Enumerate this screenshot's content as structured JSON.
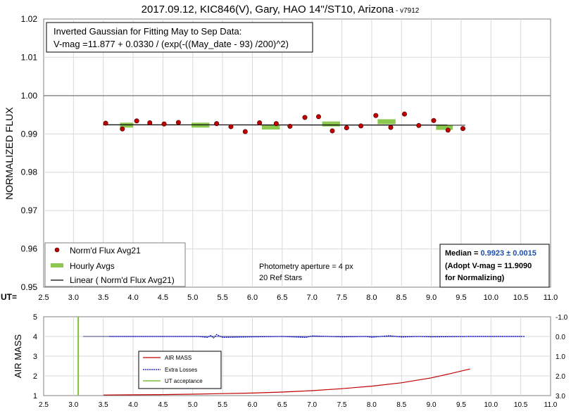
{
  "chart_data": [
    {
      "type": "scatter",
      "title": "2017.09.12, KIC846(V), Gary, HAO 14\"/ST10, Arizona",
      "title_suffix": " - v7912",
      "ylabel": "NORMALIZED FLUX",
      "x_prefix": "UT=",
      "xlim": [
        2.5,
        11.0
      ],
      "ylim": [
        0.95,
        1.02
      ],
      "x_ticks": [
        "2.5",
        "3.0",
        "3.5",
        "4.0",
        "4.5",
        "5.0",
        "5.5",
        "6.0",
        "6.5",
        "7.0",
        "7.5",
        "8.0",
        "8.5",
        "9.0",
        "9.5",
        "10.0",
        "10.5",
        "11.0"
      ],
      "y_ticks": [
        "0.95",
        "0.96",
        "0.97",
        "0.98",
        "0.99",
        "1.00",
        "1.01",
        "1.02"
      ],
      "reference_line": 1.0,
      "grid": true,
      "annotation_box": {
        "line1": "Inverted Gaussian for Fitting May to Sep Data:",
        "line2": "V-mag =11.877 + 0.0330 / (exp(-((May_date - 93) /200)^2)"
      },
      "notes": [
        "Photometry aperture = 4 px",
        "20 Ref Stars"
      ],
      "median_box": {
        "label": "Median = ",
        "value": "0.9923 ± 0.0015",
        "line2": "(Adopt V-mag = 11.9090",
        "line3": " for Normalizing)"
      },
      "legend_placement": "bottom-left",
      "series": [
        {
          "name": "Norm'd Flux Avg21",
          "color": "#c00000",
          "points": [
            [
              3.54,
              0.9928
            ],
            [
              3.82,
              0.9913
            ],
            [
              4.06,
              0.9934
            ],
            [
              4.28,
              0.9929
            ],
            [
              4.52,
              0.9926
            ],
            [
              4.76,
              0.993
            ],
            [
              5.4,
              0.9927
            ],
            [
              5.64,
              0.9919
            ],
            [
              5.88,
              0.9906
            ],
            [
              6.12,
              0.9929
            ],
            [
              6.4,
              0.9927
            ],
            [
              6.63,
              0.992
            ],
            [
              6.88,
              0.9943
            ],
            [
              7.11,
              0.9945
            ],
            [
              7.34,
              0.9908
            ],
            [
              7.58,
              0.9916
            ],
            [
              7.82,
              0.9921
            ],
            [
              8.07,
              0.9948
            ],
            [
              8.32,
              0.9917
            ],
            [
              8.55,
              0.9952
            ],
            [
              8.79,
              0.9922
            ],
            [
              9.04,
              0.9935
            ],
            [
              9.28,
              0.991
            ],
            [
              9.53,
              0.9914
            ]
          ]
        },
        {
          "name": "Hourly Avgs",
          "color": "#8cc850",
          "segments": [
            [
              3.78,
              4.0,
              0.9923
            ],
            [
              4.98,
              5.28,
              0.9923
            ],
            [
              6.16,
              6.46,
              0.9918
            ],
            [
              7.17,
              7.47,
              0.9926
            ],
            [
              8.1,
              8.4,
              0.9932
            ],
            [
              9.08,
              9.36,
              0.9917
            ]
          ]
        },
        {
          "name": "Linear ( Norm'd Flux Avg21)",
          "color": "#000000",
          "line": [
            [
              3.5,
              0.9924
            ],
            [
              9.57,
              0.9923
            ]
          ]
        }
      ]
    },
    {
      "type": "line",
      "ylabel": "AIR MASS",
      "xlim": [
        2.5,
        11.0
      ],
      "ylim": [
        1,
        5
      ],
      "y2lim": [
        3.0,
        -1.0
      ],
      "x_ticks": [
        "2.5",
        "3.0",
        "3.5",
        "4.0",
        "4.5",
        "5.0",
        "5.5",
        "6.0",
        "6.5",
        "7.0",
        "7.5",
        "8.0",
        "8.5",
        "9.0",
        "9.5",
        "10.0",
        "10.5",
        "11.0"
      ],
      "y_ticks": [
        "1",
        "2",
        "3",
        "4",
        "5"
      ],
      "y2_ticks": [
        "3.0",
        "2.0",
        "1.0",
        "0.0",
        "-1.0"
      ],
      "legend_placement": "center-left",
      "series": [
        {
          "name": "AIR MASS",
          "color": "#c00000",
          "x": [
            3.5,
            4.0,
            4.5,
            5.0,
            5.5,
            6.0,
            6.5,
            7.0,
            7.5,
            8.0,
            8.5,
            9.0,
            9.3,
            9.65
          ],
          "y": [
            1.03,
            1.04,
            1.05,
            1.07,
            1.1,
            1.13,
            1.18,
            1.25,
            1.35,
            1.48,
            1.65,
            1.9,
            2.1,
            2.35
          ]
        },
        {
          "name": "Extra Losses",
          "color": "#0000cc",
          "x": [
            3.6,
            4.5,
            5.1,
            5.25,
            5.3,
            5.35,
            5.4,
            5.5,
            6.0,
            6.5,
            6.9,
            7.0,
            7.5,
            7.9,
            8.0,
            8.3,
            8.5,
            8.8,
            9.0,
            9.65,
            10.57
          ],
          "y": [
            0.0,
            0.0,
            0.0,
            0.05,
            -0.05,
            0.08,
            -0.1,
            0.05,
            0.02,
            0.0,
            0.05,
            -0.03,
            0.02,
            0.0,
            0.04,
            -0.04,
            0.03,
            0.0,
            0.02,
            0.0,
            0.0
          ]
        },
        {
          "name": "UT acceptance",
          "color": "#7fc040",
          "x": [
            3.08,
            3.08
          ],
          "y": [
            1,
            5
          ]
        }
      ]
    }
  ]
}
